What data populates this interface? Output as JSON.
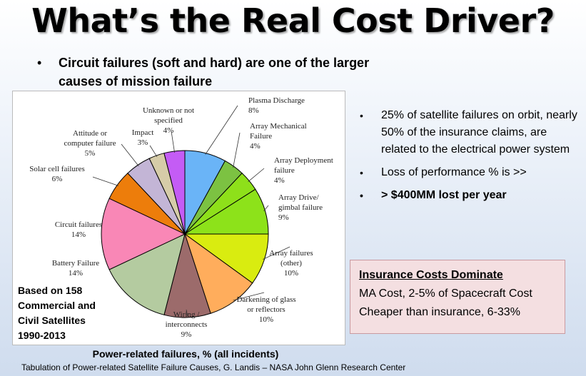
{
  "slide": {
    "title": "What’s the Real Cost Driver?",
    "bullet_top": {
      "dot": "•",
      "text": "Circuit failures (soft and hard) are one of the larger causes of mission failure"
    },
    "basis_lines": [
      "Based on 158",
      "Commercial and",
      "Civil Satellites",
      "1990-2013"
    ],
    "caption": "Power-related failures, % (all incidents)",
    "source": "Tabulation of Power-related Satellite Failure Causes, G. Landis – NASA John Glenn Research Center",
    "right_bullets": [
      {
        "dot": "•",
        "text": "25% of satellite failures on orbit, nearly 50% of the insurance claims, are related to the electrical power system"
      },
      {
        "dot": "•",
        "text": "Loss of performance % is >>"
      },
      {
        "dot": "•",
        "text": "> $400MM lost per year"
      }
    ],
    "insurance_box": {
      "heading": "Insurance Costs Dominate",
      "line1": "MA Cost, 2-5% of Spacecraft Cost",
      "line2": "Cheaper than insurance, 6-33%"
    }
  },
  "chart_data": {
    "type": "pie",
    "title": "Power-related failures, % (all incidents)",
    "slices": [
      {
        "name_lines": [
          "Plasma Discharge"
        ],
        "pct_label": "8%",
        "value": 8,
        "color": "#6ab4f7"
      },
      {
        "name_lines": [
          "Array Mechanical",
          "Failure"
        ],
        "pct_label": "4%",
        "value": 4,
        "color": "#7cc242"
      },
      {
        "name_lines": [
          "Array Deployment",
          "failure"
        ],
        "pct_label": "4%",
        "value": 4,
        "color": "#8ee01a"
      },
      {
        "name_lines": [
          "Array Drive/",
          "gimbal failure"
        ],
        "pct_label": "9%",
        "value": 9,
        "color": "#8de21a"
      },
      {
        "name_lines": [
          "Array failures",
          "(other)"
        ],
        "pct_label": "10%",
        "value": 10,
        "color": "#d9ec10"
      },
      {
        "name_lines": [
          "Darkening of glass",
          "or reflectors"
        ],
        "pct_label": "10%",
        "value": 10,
        "color": "#ffad5c"
      },
      {
        "name_lines": [
          "Wiring /",
          "interconnects"
        ],
        "pct_label": "9%",
        "value": 9,
        "color": "#9c6b6b"
      },
      {
        "name_lines": [
          "Battery Failure"
        ],
        "pct_label": "14%",
        "value": 14,
        "color": "#b4cba0"
      },
      {
        "name_lines": [
          "Circuit failures"
        ],
        "pct_label": "14%",
        "value": 14,
        "color": "#f987b6"
      },
      {
        "name_lines": [
          "Solar cell failures"
        ],
        "pct_label": "6%",
        "value": 6,
        "color": "#ed7d0b"
      },
      {
        "name_lines": [
          "Attitude or",
          "computer failure"
        ],
        "pct_label": "5%",
        "value": 5,
        "color": "#c3b5d6"
      },
      {
        "name_lines": [
          "Impact"
        ],
        "pct_label": "3%",
        "value": 3,
        "color": "#d6cca8"
      },
      {
        "name_lines": [
          "Unknown or not",
          "specified"
        ],
        "pct_label": "4%",
        "value": 4,
        "color": "#c45cf5"
      }
    ]
  }
}
